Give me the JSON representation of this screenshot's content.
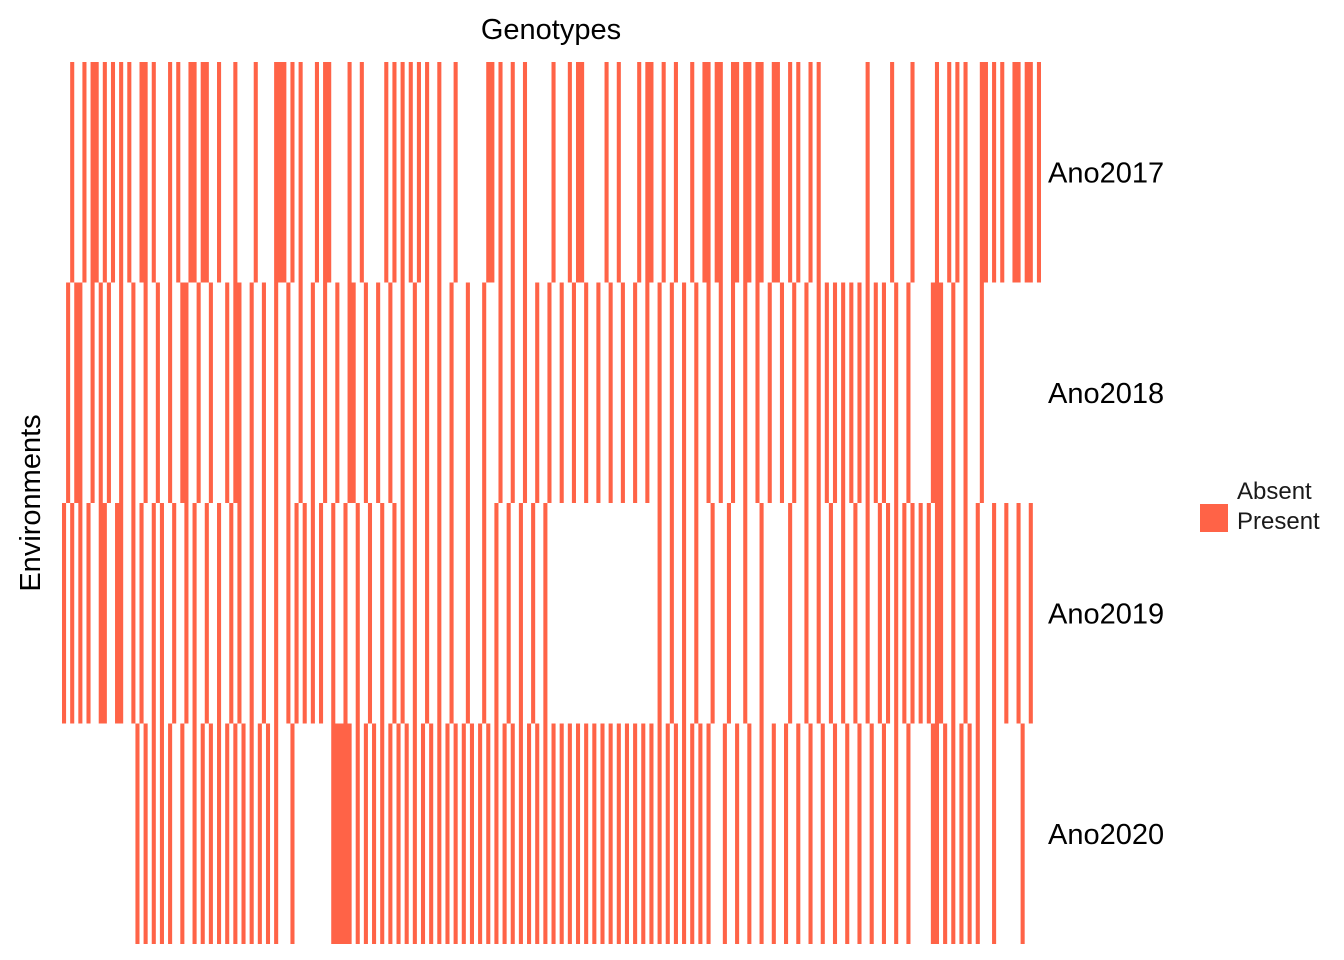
{
  "chart_data": {
    "type": "heatmap",
    "xlabel": "Genotypes",
    "ylabel": "Environments",
    "rows": [
      "Ano2017",
      "Ano2018",
      "Ano2019",
      "Ano2020"
    ],
    "genotype_count": 240,
    "legend": {
      "entries": [
        "Absent",
        "Present"
      ],
      "colors": [
        "#ffffff",
        "#ff6347"
      ]
    },
    "colors": {
      "present": "#ff6347",
      "absent": "#ffffff"
    },
    "present_runs": [
      [
        [
          2,
          2
        ],
        [
          5,
          5
        ],
        [
          7,
          8
        ],
        [
          10,
          10
        ],
        [
          12,
          12
        ],
        [
          14,
          14
        ],
        [
          16,
          16
        ],
        [
          19,
          20
        ],
        [
          22,
          22
        ],
        [
          26,
          26
        ],
        [
          28,
          28
        ],
        [
          31,
          32
        ],
        [
          34,
          35
        ],
        [
          38,
          38
        ],
        [
          42,
          42
        ],
        [
          47,
          47
        ],
        [
          52,
          54
        ],
        [
          56,
          56
        ],
        [
          58,
          58
        ],
        [
          62,
          62
        ],
        [
          64,
          65
        ],
        [
          70,
          70
        ],
        [
          73,
          73
        ],
        [
          79,
          79
        ],
        [
          81,
          81
        ],
        [
          83,
          83
        ],
        [
          85,
          85
        ],
        [
          87,
          87
        ],
        [
          89,
          89
        ],
        [
          92,
          92
        ],
        [
          96,
          96
        ],
        [
          104,
          105
        ],
        [
          107,
          107
        ],
        [
          110,
          110
        ],
        [
          113,
          113
        ],
        [
          120,
          120
        ],
        [
          124,
          124
        ],
        [
          126,
          127
        ],
        [
          133,
          133
        ],
        [
          136,
          136
        ],
        [
          141,
          141
        ],
        [
          143,
          144
        ],
        [
          147,
          147
        ],
        [
          150,
          150
        ],
        [
          154,
          154
        ],
        [
          157,
          158
        ],
        [
          160,
          161
        ],
        [
          164,
          165
        ],
        [
          167,
          168
        ],
        [
          170,
          171
        ],
        [
          174,
          175
        ],
        [
          178,
          178
        ],
        [
          180,
          180
        ],
        [
          183,
          183
        ],
        [
          185,
          185
        ],
        [
          197,
          197
        ],
        [
          203,
          203
        ],
        [
          208,
          208
        ],
        [
          214,
          214
        ],
        [
          217,
          217
        ],
        [
          219,
          219
        ],
        [
          221,
          221
        ],
        [
          225,
          226
        ],
        [
          228,
          228
        ],
        [
          230,
          230
        ],
        [
          233,
          234
        ],
        [
          236,
          237
        ],
        [
          239,
          239
        ]
      ],
      [
        [
          1,
          1
        ],
        [
          3,
          4
        ],
        [
          7,
          7
        ],
        [
          9,
          9
        ],
        [
          11,
          11
        ],
        [
          14,
          14
        ],
        [
          17,
          17
        ],
        [
          20,
          20
        ],
        [
          23,
          23
        ],
        [
          26,
          26
        ],
        [
          29,
          30
        ],
        [
          33,
          33
        ],
        [
          36,
          36
        ],
        [
          40,
          40
        ],
        [
          42,
          43
        ],
        [
          46,
          46
        ],
        [
          49,
          49
        ],
        [
          52,
          52
        ],
        [
          55,
          55
        ],
        [
          58,
          58
        ],
        [
          61,
          61
        ],
        [
          64,
          64
        ],
        [
          67,
          67
        ],
        [
          70,
          71
        ],
        [
          74,
          74
        ],
        [
          77,
          77
        ],
        [
          80,
          80
        ],
        [
          83,
          83
        ],
        [
          86,
          86
        ],
        [
          89,
          89
        ],
        [
          92,
          92
        ],
        [
          95,
          95
        ],
        [
          99,
          99
        ],
        [
          103,
          103
        ],
        [
          107,
          107
        ],
        [
          110,
          110
        ],
        [
          113,
          113
        ],
        [
          116,
          116
        ],
        [
          119,
          119
        ],
        [
          122,
          122
        ],
        [
          125,
          125
        ],
        [
          128,
          128
        ],
        [
          131,
          131
        ],
        [
          134,
          134
        ],
        [
          137,
          137
        ],
        [
          140,
          140
        ],
        [
          143,
          143
        ],
        [
          146,
          146
        ],
        [
          149,
          149
        ],
        [
          152,
          152
        ],
        [
          155,
          155
        ],
        [
          158,
          158
        ],
        [
          161,
          161
        ],
        [
          164,
          164
        ],
        [
          167,
          167
        ],
        [
          170,
          170
        ],
        [
          173,
          173
        ],
        [
          176,
          176
        ],
        [
          179,
          179
        ],
        [
          182,
          182
        ],
        [
          185,
          185
        ],
        [
          187,
          187
        ],
        [
          189,
          189
        ],
        [
          191,
          191
        ],
        [
          193,
          193
        ],
        [
          195,
          195
        ],
        [
          197,
          197
        ],
        [
          199,
          199
        ],
        [
          201,
          201
        ],
        [
          204,
          204
        ],
        [
          207,
          207
        ],
        [
          213,
          215
        ],
        [
          218,
          218
        ],
        [
          221,
          221
        ],
        [
          225,
          225
        ]
      ],
      [
        [
          0,
          0
        ],
        [
          2,
          2
        ],
        [
          4,
          4
        ],
        [
          6,
          6
        ],
        [
          9,
          10
        ],
        [
          13,
          14
        ],
        [
          17,
          17
        ],
        [
          19,
          19
        ],
        [
          22,
          22
        ],
        [
          24,
          24
        ],
        [
          27,
          27
        ],
        [
          30,
          30
        ],
        [
          32,
          32
        ],
        [
          35,
          35
        ],
        [
          38,
          38
        ],
        [
          41,
          41
        ],
        [
          43,
          43
        ],
        [
          46,
          46
        ],
        [
          49,
          49
        ],
        [
          52,
          52
        ],
        [
          55,
          55
        ],
        [
          57,
          57
        ],
        [
          59,
          59
        ],
        [
          61,
          61
        ],
        [
          63,
          63
        ],
        [
          66,
          66
        ],
        [
          69,
          69
        ],
        [
          72,
          72
        ],
        [
          75,
          75
        ],
        [
          78,
          78
        ],
        [
          81,
          81
        ],
        [
          83,
          83
        ],
        [
          86,
          86
        ],
        [
          89,
          89
        ],
        [
          92,
          92
        ],
        [
          95,
          95
        ],
        [
          99,
          99
        ],
        [
          103,
          103
        ],
        [
          106,
          106
        ],
        [
          109,
          109
        ],
        [
          112,
          112
        ],
        [
          115,
          115
        ],
        [
          118,
          118
        ],
        [
          146,
          146
        ],
        [
          149,
          149
        ],
        [
          152,
          152
        ],
        [
          155,
          155
        ],
        [
          159,
          159
        ],
        [
          163,
          163
        ],
        [
          167,
          167
        ],
        [
          171,
          171
        ],
        [
          178,
          178
        ],
        [
          182,
          182
        ],
        [
          185,
          185
        ],
        [
          188,
          188
        ],
        [
          191,
          191
        ],
        [
          194,
          194
        ],
        [
          197,
          197
        ],
        [
          200,
          200
        ],
        [
          202,
          202
        ],
        [
          204,
          204
        ],
        [
          206,
          206
        ],
        [
          208,
          208
        ],
        [
          210,
          210
        ],
        [
          212,
          212
        ],
        [
          214,
          215
        ],
        [
          218,
          218
        ],
        [
          221,
          221
        ],
        [
          224,
          224
        ],
        [
          228,
          228
        ],
        [
          231,
          231
        ],
        [
          234,
          234
        ],
        [
          237,
          237
        ]
      ],
      [
        [
          18,
          18
        ],
        [
          20,
          20
        ],
        [
          22,
          22
        ],
        [
          24,
          24
        ],
        [
          26,
          26
        ],
        [
          29,
          29
        ],
        [
          32,
          32
        ],
        [
          34,
          34
        ],
        [
          36,
          36
        ],
        [
          38,
          38
        ],
        [
          40,
          40
        ],
        [
          42,
          42
        ],
        [
          44,
          44
        ],
        [
          46,
          46
        ],
        [
          48,
          48
        ],
        [
          50,
          50
        ],
        [
          52,
          52
        ],
        [
          56,
          56
        ],
        [
          66,
          70
        ],
        [
          72,
          72
        ],
        [
          74,
          74
        ],
        [
          76,
          76
        ],
        [
          78,
          78
        ],
        [
          80,
          80
        ],
        [
          82,
          82
        ],
        [
          84,
          84
        ],
        [
          86,
          86
        ],
        [
          88,
          88
        ],
        [
          90,
          90
        ],
        [
          92,
          92
        ],
        [
          94,
          94
        ],
        [
          96,
          96
        ],
        [
          98,
          98
        ],
        [
          100,
          100
        ],
        [
          102,
          102
        ],
        [
          104,
          104
        ],
        [
          106,
          106
        ],
        [
          108,
          108
        ],
        [
          110,
          110
        ],
        [
          112,
          112
        ],
        [
          114,
          114
        ],
        [
          116,
          116
        ],
        [
          118,
          118
        ],
        [
          120,
          120
        ],
        [
          122,
          122
        ],
        [
          124,
          124
        ],
        [
          126,
          126
        ],
        [
          128,
          128
        ],
        [
          130,
          130
        ],
        [
          132,
          132
        ],
        [
          134,
          134
        ],
        [
          136,
          136
        ],
        [
          138,
          138
        ],
        [
          140,
          140
        ],
        [
          142,
          142
        ],
        [
          144,
          144
        ],
        [
          146,
          146
        ],
        [
          148,
          148
        ],
        [
          150,
          150
        ],
        [
          152,
          152
        ],
        [
          154,
          154
        ],
        [
          156,
          156
        ],
        [
          158,
          158
        ],
        [
          162,
          162
        ],
        [
          165,
          165
        ],
        [
          168,
          168
        ],
        [
          171,
          171
        ],
        [
          174,
          174
        ],
        [
          177,
          177
        ],
        [
          180,
          180
        ],
        [
          183,
          183
        ],
        [
          186,
          186
        ],
        [
          189,
          189
        ],
        [
          192,
          192
        ],
        [
          195,
          195
        ],
        [
          198,
          198
        ],
        [
          201,
          201
        ],
        [
          204,
          204
        ],
        [
          207,
          207
        ],
        [
          213,
          214
        ],
        [
          216,
          216
        ],
        [
          218,
          218
        ],
        [
          220,
          220
        ],
        [
          222,
          222
        ],
        [
          224,
          224
        ],
        [
          228,
          228
        ],
        [
          235,
          235
        ]
      ]
    ]
  }
}
